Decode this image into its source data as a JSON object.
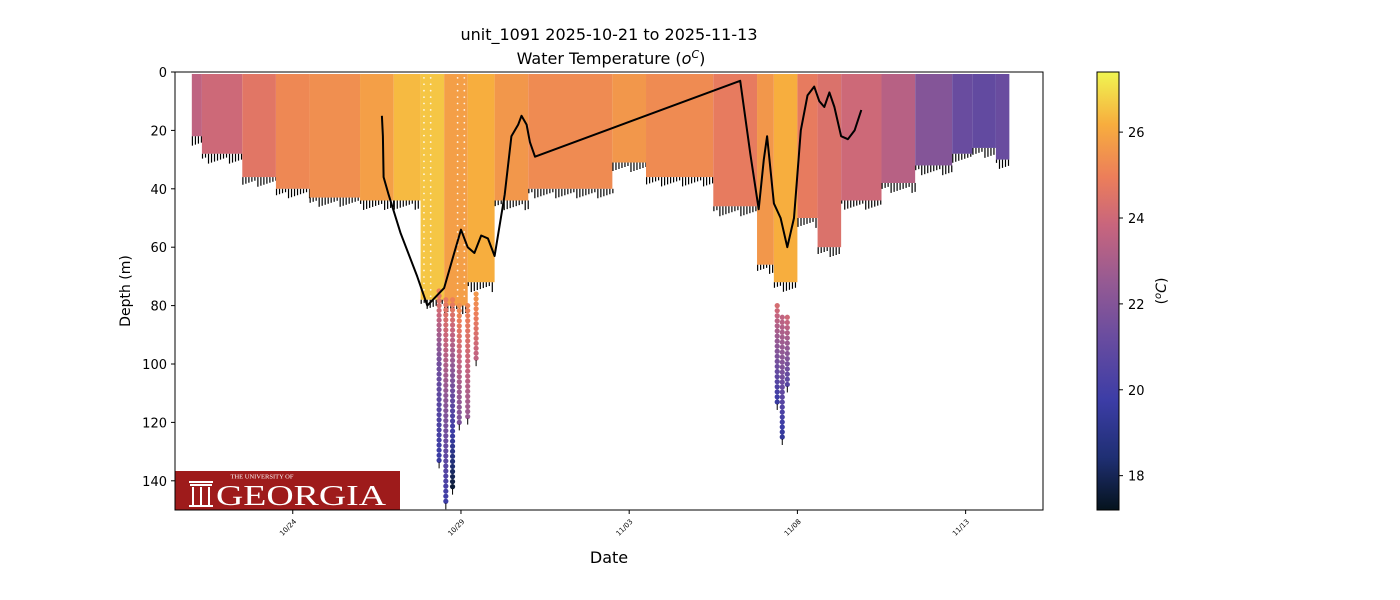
{
  "chart_data": {
    "type": "scatter",
    "title": "unit_1091 2025-10-21 to 2025-11-13",
    "subtitle_prefix": "Water Temperature (",
    "subtitle_unit_base": "o",
    "subtitle_unit_sup": "C",
    "subtitle_suffix": ")",
    "xlabel": "Date",
    "ylabel": "Depth (m)",
    "colorbar_label_open": "(",
    "colorbar_label_sup": "o",
    "colorbar_label_base": "C",
    "colorbar_label_close": ")",
    "x_tick_labels": [
      "10/24",
      "10/29",
      "11/03",
      "11/08",
      "11/13"
    ],
    "x_tick_days": [
      3,
      8,
      13,
      18,
      23
    ],
    "xlim_days": [
      -0.5,
      25.3
    ],
    "x_origin_date": "2025-10-21",
    "y_ticks": [
      0,
      20,
      40,
      60,
      80,
      100,
      120,
      140
    ],
    "ylim": [
      150,
      0
    ],
    "y_inverted": true,
    "colorbar_ticks": [
      18,
      20,
      22,
      24,
      26
    ],
    "colorbar_range": [
      17.2,
      27.4
    ],
    "colormap": "thermal",
    "grid": false,
    "logo": {
      "top_line": "THE UNIVERSITY OF",
      "name": "GEORGIA",
      "background": "#9e1b1b",
      "text_color": "#ffffff"
    },
    "series": [
      {
        "kind": "glider_depth_line",
        "color": "#000000",
        "points": [
          [
            5.65,
            15
          ],
          [
            5.68,
            22
          ],
          [
            5.7,
            36
          ],
          [
            5.85,
            42
          ],
          [
            6.2,
            55
          ],
          [
            6.7,
            70
          ],
          [
            7.0,
            80
          ],
          [
            7.5,
            74
          ],
          [
            7.8,
            62
          ],
          [
            8.0,
            54
          ],
          [
            8.2,
            60
          ],
          [
            8.4,
            62
          ],
          [
            8.6,
            56
          ],
          [
            8.8,
            57
          ],
          [
            9.0,
            63
          ],
          [
            9.3,
            42
          ],
          [
            9.5,
            22
          ],
          [
            9.7,
            18
          ],
          [
            9.8,
            15
          ],
          [
            9.95,
            18
          ],
          [
            10.05,
            24
          ],
          [
            10.2,
            29
          ],
          [
            16.3,
            3
          ],
          [
            16.6,
            28
          ],
          [
            16.85,
            47
          ],
          [
            17.0,
            30
          ],
          [
            17.1,
            22
          ],
          [
            17.3,
            45
          ],
          [
            17.5,
            50
          ],
          [
            17.7,
            60
          ],
          [
            17.9,
            50
          ],
          [
            18.1,
            20
          ],
          [
            18.3,
            8
          ],
          [
            18.5,
            5
          ],
          [
            18.65,
            10
          ],
          [
            18.8,
            12
          ],
          [
            18.95,
            7
          ],
          [
            19.1,
            12
          ],
          [
            19.3,
            22
          ],
          [
            19.5,
            23
          ],
          [
            19.7,
            20
          ],
          [
            19.9,
            13
          ]
        ]
      }
    ],
    "temperature_bands": [
      {
        "x0": 0.0,
        "x1": 0.3,
        "top": 0,
        "bottom": 22,
        "temp": 23.6
      },
      {
        "x0": 0.3,
        "x1": 1.5,
        "top": 0,
        "bottom": 28,
        "temp": 24.0
      },
      {
        "x0": 1.5,
        "x1": 2.5,
        "top": 0,
        "bottom": 36,
        "temp": 24.6
      },
      {
        "x0": 2.5,
        "x1": 3.5,
        "top": 0,
        "bottom": 40,
        "temp": 25.2
      },
      {
        "x0": 3.5,
        "x1": 5.0,
        "top": 0,
        "bottom": 43,
        "temp": 25.4
      },
      {
        "x0": 5.0,
        "x1": 6.0,
        "top": 0,
        "bottom": 44,
        "temp": 25.8
      },
      {
        "x0": 6.0,
        "x1": 6.8,
        "top": 0,
        "bottom": 44,
        "temp": 26.4
      },
      {
        "x0": 6.8,
        "x1": 7.5,
        "top": 0,
        "bottom": 78,
        "temp": 26.6
      },
      {
        "x0": 7.5,
        "x1": 8.2,
        "top": 0,
        "bottom": 80,
        "temp": 25.8
      },
      {
        "x0": 8.2,
        "x1": 9.0,
        "top": 0,
        "bottom": 72,
        "temp": 26.2
      },
      {
        "x0": 9.0,
        "x1": 10.0,
        "top": 0,
        "bottom": 44,
        "temp": 25.6
      },
      {
        "x0": 10.0,
        "x1": 12.5,
        "top": 0,
        "bottom": 40,
        "temp": 25.3
      },
      {
        "x0": 12.5,
        "x1": 13.5,
        "top": 0,
        "bottom": 31,
        "temp": 25.6
      },
      {
        "x0": 13.5,
        "x1": 15.5,
        "top": 0,
        "bottom": 36,
        "temp": 25.3
      },
      {
        "x0": 15.5,
        "x1": 16.8,
        "top": 0,
        "bottom": 46,
        "temp": 24.8
      },
      {
        "x0": 16.8,
        "x1": 17.3,
        "top": 0,
        "bottom": 66,
        "temp": 25.6
      },
      {
        "x0": 17.3,
        "x1": 18.0,
        "top": 0,
        "bottom": 72,
        "temp": 26.2
      },
      {
        "x0": 18.0,
        "x1": 18.6,
        "top": 0,
        "bottom": 50,
        "temp": 24.8
      },
      {
        "x0": 18.6,
        "x1": 19.3,
        "top": 0,
        "bottom": 60,
        "temp": 24.4
      },
      {
        "x0": 19.3,
        "x1": 20.5,
        "top": 0,
        "bottom": 44,
        "temp": 24.0
      },
      {
        "x0": 20.5,
        "x1": 21.5,
        "top": 0,
        "bottom": 38,
        "temp": 23.4
      },
      {
        "x0": 21.5,
        "x1": 22.6,
        "top": 0,
        "bottom": 32,
        "temp": 22.0
      },
      {
        "x0": 22.6,
        "x1": 23.2,
        "top": 0,
        "bottom": 28,
        "temp": 21.2
      },
      {
        "x0": 23.2,
        "x1": 23.9,
        "top": 0,
        "bottom": 26,
        "temp": 21.0
      },
      {
        "x0": 23.9,
        "x1": 24.3,
        "top": 0,
        "bottom": 30,
        "temp": 21.2
      }
    ],
    "deep_casts": [
      {
        "x": 7.35,
        "top": 75,
        "bottom": 100,
        "temp_top": 25.0,
        "temp_bottom": 21.5
      },
      {
        "x": 7.35,
        "top": 100,
        "bottom": 133,
        "temp_top": 21.5,
        "temp_bottom": 19.6
      },
      {
        "x": 7.55,
        "top": 78,
        "bottom": 147,
        "temp_top": 24.8,
        "temp_bottom": 19.8
      },
      {
        "x": 7.75,
        "top": 78,
        "bottom": 142,
        "temp_top": 25.0,
        "temp_bottom": 17.6
      },
      {
        "x": 7.95,
        "top": 80,
        "bottom": 120,
        "temp_top": 25.4,
        "temp_bottom": 21.8
      },
      {
        "x": 8.2,
        "top": 80,
        "bottom": 118,
        "temp_top": 25.2,
        "temp_bottom": 22.6
      },
      {
        "x": 8.45,
        "top": 76,
        "bottom": 98,
        "temp_top": 25.6,
        "temp_bottom": 23.6
      },
      {
        "x": 17.4,
        "top": 80,
        "bottom": 113,
        "temp_top": 24.2,
        "temp_bottom": 19.6
      },
      {
        "x": 17.55,
        "top": 84,
        "bottom": 125,
        "temp_top": 23.6,
        "temp_bottom": 19.4
      },
      {
        "x": 17.7,
        "top": 84,
        "bottom": 107,
        "temp_top": 24.0,
        "temp_bottom": 20.6
      }
    ]
  }
}
